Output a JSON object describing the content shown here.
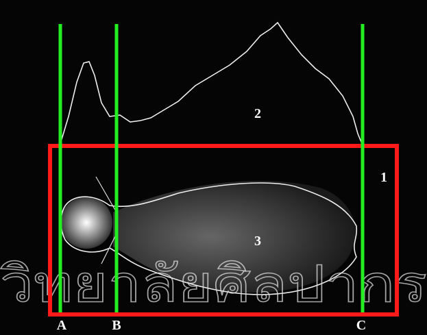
{
  "regions": [
    "1",
    "2",
    "3"
  ],
  "lines": [
    "A",
    "B",
    "C"
  ],
  "watermark": "วิทยาลัยศิลปากร"
}
